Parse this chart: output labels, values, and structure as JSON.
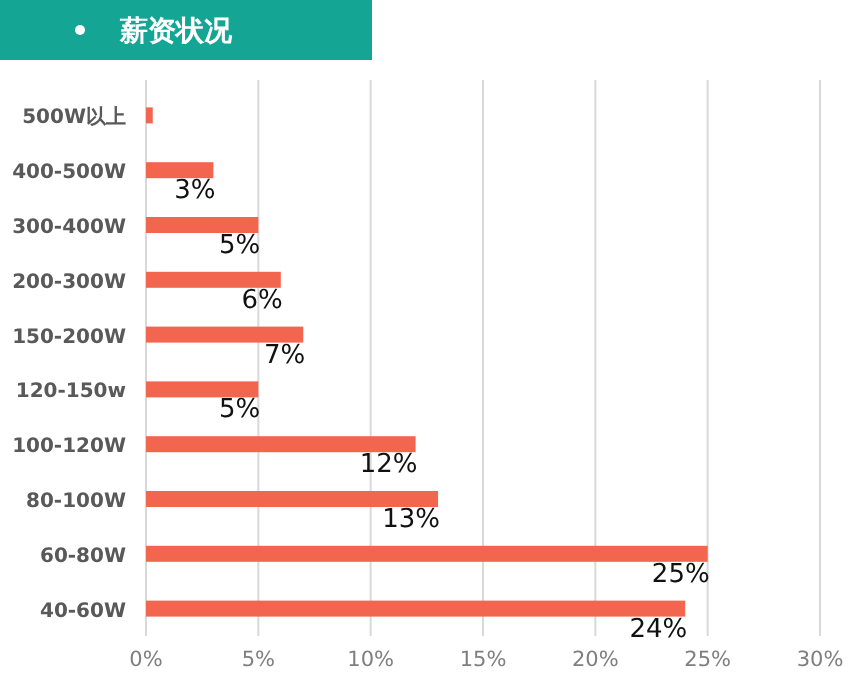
{
  "chart_data": {
    "type": "bar",
    "orientation": "horizontal",
    "title": "薪资状况",
    "categories": [
      "500W以上",
      "400-500W",
      "300-400W",
      "200-300W",
      "150-200W",
      "120-150w",
      "100-120W",
      "80-100W",
      "60-80W",
      "40-60W"
    ],
    "values": [
      0.3,
      3,
      5,
      6,
      7,
      5,
      12,
      13,
      25,
      24
    ],
    "value_labels": [
      null,
      "3%",
      "5%",
      "6%",
      "7%",
      "5%",
      "12%",
      "13%",
      "25%",
      "24%"
    ],
    "color": "#f26650",
    "xlim": [
      0,
      30
    ],
    "xticks": [
      {
        "value": 0,
        "label": "0%"
      },
      {
        "value": 5,
        "label": "5%"
      },
      {
        "value": 10,
        "label": "10%"
      },
      {
        "value": 15,
        "label": "15%"
      },
      {
        "value": 20,
        "label": "20%"
      },
      {
        "value": 25,
        "label": "25%"
      },
      {
        "value": 30,
        "label": "30%"
      }
    ],
    "grid": "x"
  }
}
